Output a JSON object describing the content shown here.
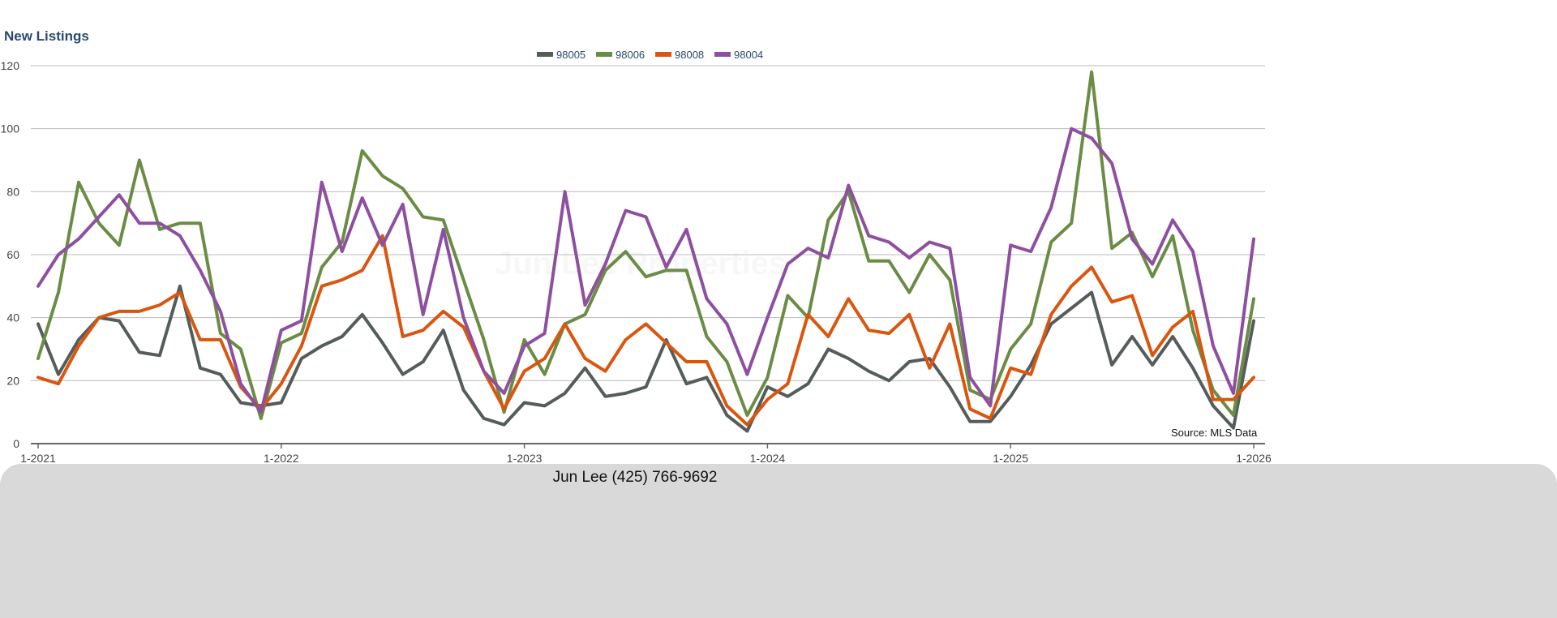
{
  "chart_data": {
    "type": "line",
    "title": "New Listings",
    "watermark": "Jun Lee Properties",
    "source": "Source: MLS Data",
    "xlabel": "",
    "ylabel": "",
    "ylim": [
      0,
      120
    ],
    "yticks": [
      0,
      20,
      40,
      60,
      80,
      100,
      120
    ],
    "xticks": [
      {
        "index": 0,
        "label": "1-2021"
      },
      {
        "index": 12,
        "label": "1-2022"
      },
      {
        "index": 24,
        "label": "1-2023"
      },
      {
        "index": 36,
        "label": "1-2024"
      },
      {
        "index": 48,
        "label": "1-2025"
      },
      {
        "index": 60,
        "label": "1-2026"
      }
    ],
    "x_start": "1-2021",
    "x_end": "1-2026",
    "x_interval": "monthly",
    "grid": true,
    "legend_position": "top-center",
    "series": [
      {
        "name": "98005",
        "color": "#545c5c",
        "values": [
          38,
          22,
          33,
          40,
          39,
          29,
          28,
          50,
          24,
          22,
          13,
          12,
          13,
          27,
          31,
          34,
          41,
          32,
          22,
          26,
          36,
          17,
          8,
          6,
          13,
          12,
          16,
          24,
          15,
          16,
          18,
          33,
          19,
          21,
          9,
          4,
          18,
          15,
          19,
          30,
          27,
          23,
          20,
          26,
          27,
          18,
          7,
          7,
          15,
          25,
          38,
          43,
          48,
          25,
          34,
          25,
          34,
          24,
          12,
          5,
          39
        ]
      },
      {
        "name": "98006",
        "color": "#6b8c45",
        "values": [
          27,
          48,
          83,
          70,
          63,
          90,
          68,
          70,
          70,
          35,
          30,
          8,
          32,
          35,
          56,
          64,
          93,
          85,
          81,
          72,
          71,
          52,
          33,
          10,
          33,
          22,
          38,
          41,
          55,
          61,
          53,
          55,
          55,
          34,
          26,
          9,
          21,
          47,
          40,
          71,
          80,
          58,
          58,
          48,
          60,
          52,
          17,
          14,
          30,
          38,
          64,
          70,
          118,
          62,
          67,
          53,
          66,
          36,
          17,
          9,
          46
        ]
      },
      {
        "name": "98008",
        "color": "#d9560f",
        "values": [
          21,
          19,
          31,
          40,
          42,
          42,
          44,
          48,
          33,
          33,
          18,
          11,
          19,
          31,
          50,
          52,
          55,
          66,
          34,
          36,
          42,
          37,
          23,
          11,
          23,
          27,
          38,
          27,
          23,
          33,
          38,
          32,
          26,
          26,
          12,
          6,
          14,
          19,
          41,
          34,
          46,
          36,
          35,
          41,
          24,
          38,
          11,
          8,
          24,
          22,
          41,
          50,
          56,
          45,
          47,
          28,
          37,
          42,
          14,
          14,
          21
        ]
      },
      {
        "name": "98004",
        "color": "#8e4fa0",
        "values": [
          50,
          60,
          65,
          72,
          79,
          70,
          70,
          66,
          55,
          42,
          19,
          10,
          36,
          39,
          83,
          61,
          78,
          63,
          76,
          41,
          68,
          40,
          23,
          16,
          31,
          35,
          80,
          44,
          57,
          74,
          72,
          56,
          68,
          46,
          38,
          22,
          40,
          57,
          62,
          59,
          82,
          66,
          64,
          59,
          64,
          62,
          21,
          12,
          63,
          61,
          75,
          100,
          97,
          89,
          65,
          57,
          71,
          61,
          31,
          16,
          65
        ]
      }
    ]
  },
  "footer": {
    "contact": "Jun Lee (425) 766-9692"
  }
}
